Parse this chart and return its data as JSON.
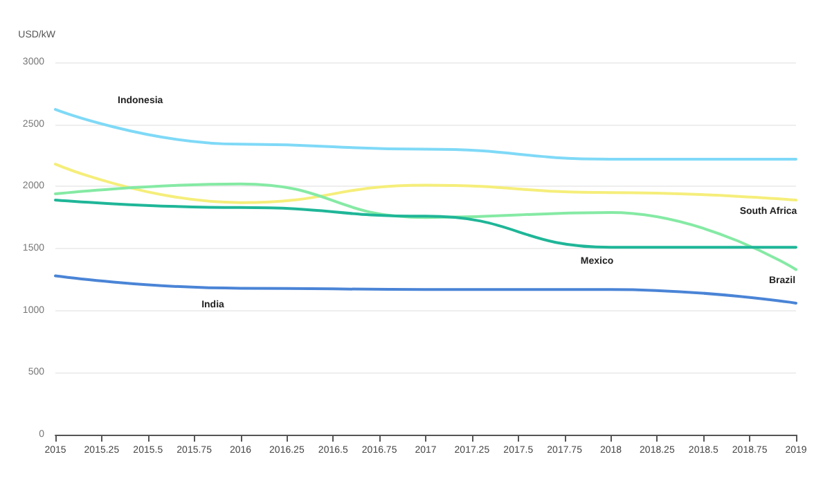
{
  "chart_data": {
    "type": "line",
    "ylabel": "USD/kW",
    "x": [
      2015,
      2016,
      2017,
      2018,
      2019
    ],
    "series": [
      {
        "name": "Indonesia",
        "color": "#7fd9f7",
        "values": [
          2620,
          2340,
          2300,
          2220,
          2220
        ]
      },
      {
        "name": "South Africa",
        "color": "#f5ee7a",
        "values": [
          2180,
          1870,
          2010,
          1950,
          1890
        ]
      },
      {
        "name": "Brazil",
        "color": "#85eaa4",
        "values": [
          1940,
          2020,
          1750,
          1790,
          1330
        ]
      },
      {
        "name": "Mexico",
        "color": "#1fb698",
        "values": [
          1890,
          1830,
          1760,
          1510,
          1510
        ]
      },
      {
        "name": "India",
        "color": "#4a84d6",
        "values": [
          1280,
          1180,
          1170,
          1170,
          1060
        ]
      }
    ],
    "xlim": [
      2015,
      2019
    ],
    "xticks": [
      2015,
      2015.25,
      2015.5,
      2015.75,
      2016,
      2016.25,
      2016.5,
      2016.75,
      2017,
      2017.25,
      2017.5,
      2017.75,
      2018,
      2018.25,
      2018.5,
      2018.75,
      2019
    ],
    "ylim": [
      0,
      3000
    ],
    "yticks": [
      0,
      500,
      1000,
      1500,
      2000,
      2500,
      3000
    ],
    "grid": "y",
    "legend": false,
    "marker": "none",
    "line_style": "solid"
  }
}
